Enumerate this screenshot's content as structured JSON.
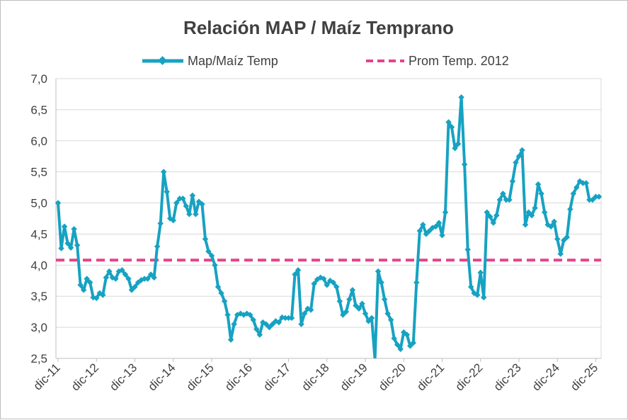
{
  "chart_data": {
    "type": "line",
    "title": "Relación MAP / Maíz Temprano",
    "xlabel": "",
    "ylabel": "",
    "ylim": [
      2.5,
      7.0
    ],
    "yticks": [
      "2,5",
      "3,0",
      "3,5",
      "4,0",
      "4,5",
      "5,0",
      "5,5",
      "6,0",
      "6,5",
      "7,0"
    ],
    "ytick_values": [
      2.5,
      3.0,
      3.5,
      4.0,
      4.5,
      5.0,
      5.5,
      6.0,
      6.5,
      7.0
    ],
    "xticks": [
      "dic-11",
      "dic-12",
      "dic-13",
      "dic-14",
      "dic-15",
      "dic-16",
      "dic-17",
      "dic-18",
      "dic-19",
      "dic-20",
      "dic-21",
      "dic-22",
      "dic-23",
      "dic-24",
      "dic-25"
    ],
    "grid": true,
    "legend_position": "top",
    "series": [
      {
        "name": "Map/Maíz Temp",
        "color": "#17a2c2",
        "style": "line-diamond",
        "values": [
          5.0,
          4.27,
          4.62,
          4.35,
          4.28,
          4.58,
          4.32,
          3.68,
          3.6,
          3.78,
          3.72,
          3.48,
          3.47,
          3.55,
          3.52,
          3.8,
          3.9,
          3.8,
          3.78,
          3.9,
          3.92,
          3.85,
          3.78,
          3.6,
          3.65,
          3.72,
          3.76,
          3.78,
          3.78,
          3.85,
          3.8,
          4.3,
          4.67,
          5.5,
          5.18,
          4.75,
          4.72,
          5.0,
          5.07,
          5.07,
          4.95,
          4.82,
          5.12,
          4.82,
          5.02,
          4.98,
          4.42,
          4.22,
          4.15,
          4.0,
          3.65,
          3.55,
          3.42,
          3.2,
          2.8,
          3.05,
          3.2,
          3.22,
          3.2,
          3.22,
          3.2,
          3.12,
          2.97,
          2.88,
          3.08,
          3.05,
          3.0,
          3.05,
          3.1,
          3.08,
          3.16,
          3.15,
          3.15,
          3.15,
          3.85,
          3.92,
          3.05,
          3.22,
          3.3,
          3.28,
          3.7,
          3.77,
          3.8,
          3.78,
          3.68,
          3.75,
          3.72,
          3.65,
          3.42,
          3.2,
          3.25,
          3.45,
          3.6,
          3.35,
          3.3,
          3.38,
          3.22,
          3.1,
          3.15,
          2.48,
          3.9,
          3.72,
          3.45,
          3.22,
          3.12,
          2.82,
          2.72,
          2.65,
          2.92,
          2.88,
          2.7,
          2.75,
          3.72,
          4.55,
          4.65,
          4.5,
          4.55,
          4.6,
          4.62,
          4.68,
          4.48,
          4.85,
          6.3,
          6.22,
          5.88,
          5.95,
          6.7,
          5.62,
          4.25,
          3.65,
          3.55,
          3.52,
          3.88,
          3.48,
          4.85,
          4.78,
          4.68,
          4.8,
          5.05,
          5.15,
          5.05,
          5.05,
          5.35,
          5.65,
          5.75,
          5.85,
          4.65,
          4.85,
          4.8,
          4.92,
          5.3,
          5.15,
          4.85,
          4.65,
          4.62,
          4.7,
          4.42,
          4.18,
          4.4,
          4.45,
          4.9,
          5.15,
          5.25,
          5.35,
          5.32,
          5.32,
          5.05,
          5.05,
          5.1,
          5.1
        ]
      },
      {
        "name": "Prom Temp. 2012",
        "color": "#e6428c",
        "style": "dashed",
        "value": 4.08
      }
    ]
  }
}
